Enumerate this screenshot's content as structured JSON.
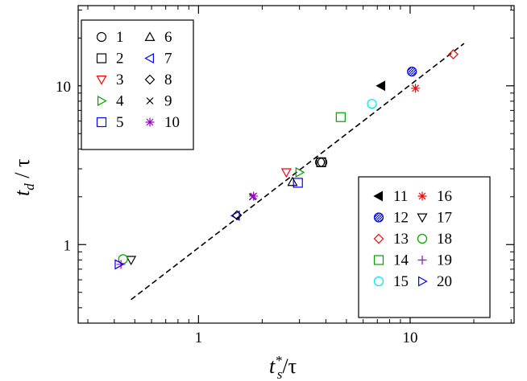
{
  "chart_data": {
    "type": "scatter",
    "title": "",
    "xlabel": {
      "main": "t",
      "sub": "s",
      "sup": "*",
      "tail": "/τ"
    },
    "ylabel": {
      "main": "t",
      "sub": "d",
      "tail": " / τ"
    },
    "x_scale": "log",
    "y_scale": "log",
    "xlim": [
      0.27,
      31
    ],
    "ylim": [
      0.32,
      32
    ],
    "x_ticks": [
      {
        "value": 1,
        "label": "1"
      },
      {
        "value": 10,
        "label": "10"
      }
    ],
    "y_ticks": [
      {
        "value": 1,
        "label": "1"
      },
      {
        "value": 10,
        "label": "10"
      }
    ],
    "grid": false,
    "fit_line": {
      "style": "dashed",
      "color": "#000000",
      "points": [
        [
          0.48,
          0.45
        ],
        [
          18,
          18.5
        ]
      ]
    },
    "legends": [
      {
        "placement": "top-left",
        "entries": [
          "1",
          "2",
          "3",
          "4",
          "5",
          "6",
          "7",
          "8",
          "9",
          "10"
        ]
      },
      {
        "placement": "bottom-right",
        "entries": [
          "11",
          "12",
          "13",
          "14",
          "15",
          "16",
          "17",
          "18",
          "19",
          "20"
        ]
      }
    ],
    "series": [
      {
        "name": "1",
        "marker": "circle",
        "color": "#000000",
        "points": [
          [
            3.75,
            3.3
          ],
          [
            3.85,
            3.3
          ]
        ]
      },
      {
        "name": "2",
        "marker": "square",
        "color": "#000000",
        "points": [
          [
            3.8,
            3.3
          ]
        ]
      },
      {
        "name": "3",
        "marker": "triangle-down",
        "color": "#ff0000",
        "points": [
          [
            2.6,
            2.85
          ]
        ]
      },
      {
        "name": "4",
        "marker": "triangle-right",
        "color": "#00a000",
        "points": [
          [
            3.0,
            2.85
          ]
        ]
      },
      {
        "name": "5",
        "marker": "square",
        "color": "#0000ff",
        "points": [
          [
            2.95,
            2.45
          ]
        ]
      },
      {
        "name": "6",
        "marker": "triangle-up",
        "color": "#000000",
        "points": [
          [
            2.78,
            2.48
          ]
        ]
      },
      {
        "name": "7",
        "marker": "triangle-left",
        "color": "#0000ff",
        "points": [
          [
            1.5,
            1.52
          ]
        ]
      },
      {
        "name": "8",
        "marker": "diamond",
        "color": "#000000",
        "points": [
          [
            1.52,
            1.53
          ]
        ]
      },
      {
        "name": "9",
        "marker": "x",
        "color": "#000000",
        "points": [
          [
            1.8,
            2.0
          ]
        ]
      },
      {
        "name": "10",
        "marker": "asterisk",
        "color": "#9900cc",
        "points": [
          [
            1.82,
            2.02
          ]
        ]
      },
      {
        "name": "11",
        "marker": "triangle-left-filled",
        "color": "#000000",
        "points": [
          [
            7.3,
            10.0
          ]
        ]
      },
      {
        "name": "12",
        "marker": "circle-hatched",
        "color": "#0000ff",
        "points": [
          [
            10.2,
            12.3
          ]
        ]
      },
      {
        "name": "13",
        "marker": "diamond",
        "color": "#ff0000",
        "points": [
          [
            16.0,
            15.8
          ]
        ]
      },
      {
        "name": "14",
        "marker": "square",
        "color": "#00a000",
        "points": [
          [
            4.7,
            6.35
          ]
        ]
      },
      {
        "name": "15",
        "marker": "circle",
        "color": "#00e5ee",
        "points": [
          [
            6.6,
            7.7
          ]
        ]
      },
      {
        "name": "16",
        "marker": "asterisk",
        "color": "#ff0000",
        "points": [
          [
            10.6,
            9.65
          ]
        ]
      },
      {
        "name": "17",
        "marker": "triangle-down",
        "color": "#000000",
        "points": [
          [
            0.48,
            0.8
          ]
        ]
      },
      {
        "name": "18",
        "marker": "circle",
        "color": "#00a000",
        "points": [
          [
            0.44,
            0.81
          ]
        ]
      },
      {
        "name": "19",
        "marker": "plus",
        "color": "#9900cc",
        "points": [
          [
            0.43,
            0.75
          ]
        ]
      },
      {
        "name": "20",
        "marker": "triangle-right",
        "color": "#0000ff",
        "points": [
          [
            0.42,
            0.75
          ]
        ]
      }
    ]
  }
}
